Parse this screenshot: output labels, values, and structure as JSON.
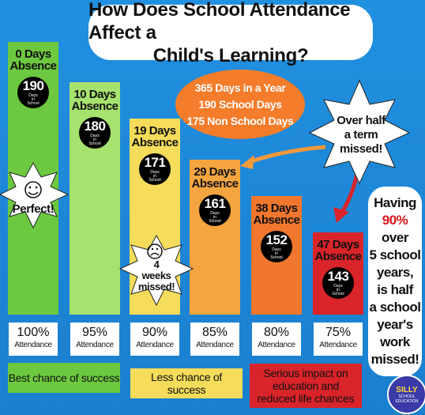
{
  "title": {
    "line1": "How Does School Attendance Affect a",
    "line2": "Child's Learning?"
  },
  "info": {
    "line1": "365 Days in a Year",
    "line2": "190 School Days",
    "line3": "175 Non School Days"
  },
  "callout": {
    "line1": "Over half",
    "line2": "a term",
    "line3": "missed!"
  },
  "stars": {
    "perfect": "Perfect!",
    "weeks_line1": "4",
    "weeks_line2": "weeks",
    "weeks_line3": "missed!"
  },
  "having": [
    "Having",
    "90%",
    "over",
    "5 school",
    "years,",
    "is half",
    "a school",
    "year's",
    "work",
    "missed!"
  ],
  "impact": {
    "best": "Best chance of success",
    "less": "Less chance of success",
    "serious_line1": "Serious impact on",
    "serious_line2": "education and",
    "serious_line3": "reduced life chances"
  },
  "logo": {
    "word": "SILLY",
    "sub": "SCHOOL EDUCATION"
  },
  "chart_data": {
    "type": "bar",
    "categories": [
      "0 Days Absence",
      "10 Days Absence",
      "19 Days Absence",
      "29 Days Absence",
      "38 Days Absence",
      "47 Days Absence"
    ],
    "bars": [
      {
        "absence_line1": "0 Days",
        "absence_line2": "Absence",
        "days": "190",
        "days_label_line1": "Days",
        "days_label_line2": "in",
        "days_label_line3": "School",
        "pct": "100%",
        "att": "Attendance",
        "color": "#6cc93f"
      },
      {
        "absence_line1": "10 Days",
        "absence_line2": "Absence",
        "days": "180",
        "days_label_line1": "Days",
        "days_label_line2": "in",
        "days_label_line3": "School",
        "pct": "95%",
        "att": "Attendance",
        "color": "#a6e26e"
      },
      {
        "absence_line1": "19 Days",
        "absence_line2": "Absence",
        "days": "171",
        "days_label_line1": "Days",
        "days_label_line2": "in",
        "days_label_line3": "School",
        "pct": "90%",
        "att": "Attendance",
        "color": "#f5dc5a"
      },
      {
        "absence_line1": "29 Days",
        "absence_line2": "Absence",
        "days": "161",
        "days_label_line1": "Days",
        "days_label_line2": "in",
        "days_label_line3": "School",
        "pct": "85%",
        "att": "Attendance",
        "color": "#f4a540"
      },
      {
        "absence_line1": "38 Days",
        "absence_line2": "Absence",
        "days": "152",
        "days_label_line1": "Days",
        "days_label_line2": "in",
        "days_label_line3": "School",
        "pct": "80%",
        "att": "Attendance",
        "color": "#f1772e"
      },
      {
        "absence_line1": "47 Days",
        "absence_line2": "Absence",
        "days": "143",
        "days_label_line1": "Days",
        "days_label_line2": "in",
        "days_label_line3": "School",
        "pct": "75%",
        "att": "Attendance",
        "color": "#d9242a"
      }
    ],
    "values": [
      190,
      180,
      171,
      161,
      152,
      143
    ],
    "ylim": [
      0,
      190
    ]
  }
}
